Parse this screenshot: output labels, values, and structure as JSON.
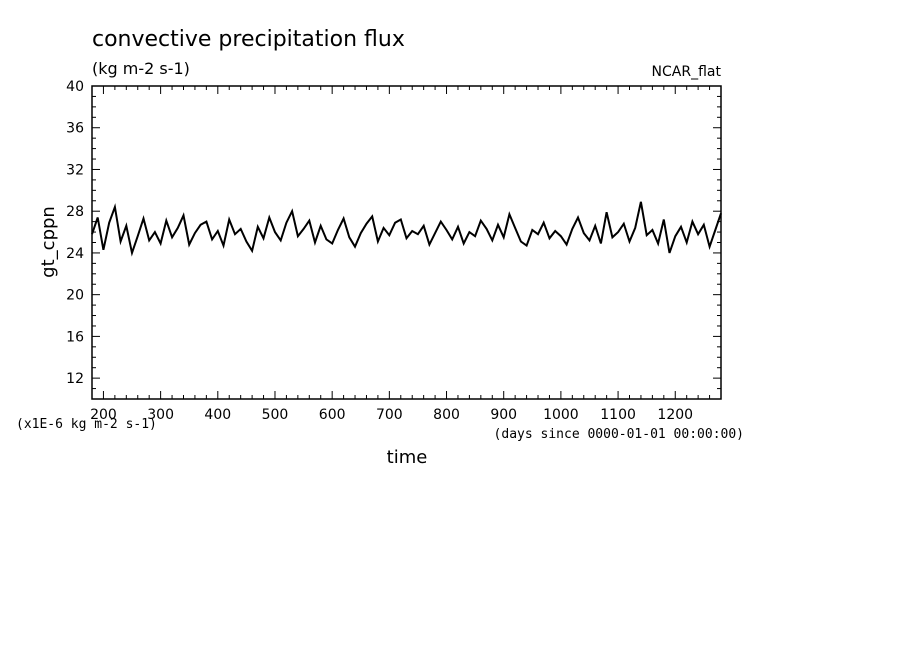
{
  "chart_data": {
    "type": "line",
    "title": "convective precipitation flux",
    "units_label": "(kg m-2 s-1)",
    "colormap_label": "NCAR_flat",
    "ylabel": "gt_cppn",
    "xlabel": "time",
    "y_scale_note": "(x1E-6 kg m-2 s-1)",
    "x_units_note": "(days since 0000-01-01 00:00:00)",
    "xlim": [
      180,
      1280
    ],
    "ylim": [
      10,
      40
    ],
    "x_ticks": [
      200,
      300,
      400,
      500,
      600,
      700,
      800,
      900,
      1000,
      1100,
      1200
    ],
    "x_tick_labels": [
      "200",
      "300",
      "400",
      "500",
      "600",
      "700",
      "800",
      "900",
      "1000",
      "1100",
      "1200"
    ],
    "y_ticks": [
      12,
      16,
      20,
      24,
      28,
      32,
      36,
      40
    ],
    "y_tick_labels": [
      "12",
      "16",
      "20",
      "24",
      "28",
      "32",
      "36",
      "40"
    ],
    "grid": false,
    "line_color": "#000000",
    "series": [
      {
        "x": [
          180,
          190,
          200,
          210,
          220,
          230,
          240,
          250,
          260,
          270,
          280,
          290,
          300,
          310,
          320,
          330,
          340,
          350,
          360,
          370,
          380,
          390,
          400,
          410,
          420,
          430,
          440,
          450,
          460,
          470,
          480,
          490,
          500,
          510,
          520,
          530,
          540,
          550,
          560,
          570,
          580,
          590,
          600,
          610,
          620,
          630,
          640,
          650,
          660,
          670,
          680,
          690,
          700,
          710,
          720,
          730,
          740,
          750,
          760,
          770,
          780,
          790,
          800,
          810,
          820,
          830,
          840,
          850,
          860,
          870,
          880,
          890,
          900,
          910,
          920,
          930,
          940,
          950,
          960,
          970,
          980,
          990,
          1000,
          1010,
          1020,
          1030,
          1040,
          1050,
          1060,
          1070,
          1080,
          1090,
          1100,
          1110,
          1120,
          1130,
          1140,
          1150,
          1160,
          1170,
          1180,
          1190,
          1200,
          1210,
          1220,
          1230,
          1240,
          1250,
          1260,
          1270,
          1280
        ],
        "values": [
          25.8,
          27.4,
          24.3,
          26.9,
          28.4,
          25.1,
          26.6,
          24.0,
          25.6,
          27.3,
          25.2,
          26.0,
          24.9,
          27.1,
          25.5,
          26.4,
          27.6,
          24.8,
          25.9,
          26.7,
          27.0,
          25.3,
          26.1,
          24.7,
          27.2,
          25.8,
          26.3,
          25.1,
          24.2,
          26.5,
          25.4,
          27.4,
          26.0,
          25.2,
          26.9,
          28.0,
          25.6,
          26.3,
          27.1,
          25.0,
          26.6,
          25.3,
          24.9,
          26.2,
          27.3,
          25.5,
          24.6,
          25.9,
          26.8,
          27.5,
          25.1,
          26.4,
          25.7,
          26.9,
          27.2,
          25.4,
          26.1,
          25.8,
          26.6,
          24.8,
          25.9,
          27.0,
          26.2,
          25.3,
          26.5,
          24.9,
          26.0,
          25.6,
          27.1,
          26.3,
          25.2,
          26.7,
          25.5,
          27.7,
          26.4,
          25.1,
          24.7,
          26.2,
          25.8,
          26.9,
          25.4,
          26.1,
          25.6,
          24.8,
          26.3,
          27.4,
          25.9,
          25.2,
          26.6,
          24.9,
          27.9,
          25.5,
          26.0,
          26.8,
          25.1,
          26.4,
          28.9,
          25.7,
          26.2,
          24.9,
          27.2,
          24.0,
          25.6,
          26.5,
          25.0,
          27.0,
          25.8,
          26.7,
          24.6,
          26.2,
          27.8
        ]
      }
    ]
  }
}
